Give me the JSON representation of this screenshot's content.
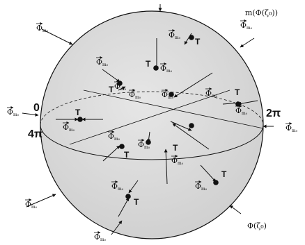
{
  "diagram": {
    "boundary_labels": {
      "top_right": "m(Φ(ζ₀))",
      "bottom_right": "Φ(ζ₀)",
      "left_top": "0",
      "left_bottom": "4π",
      "right": "2π"
    },
    "marker": "T",
    "field_symbol": "Φ",
    "field_subscript": "m₀",
    "colors": {
      "sphere": "#d9d9d9",
      "stroke": "#111111",
      "background": "#ffffff"
    }
  }
}
